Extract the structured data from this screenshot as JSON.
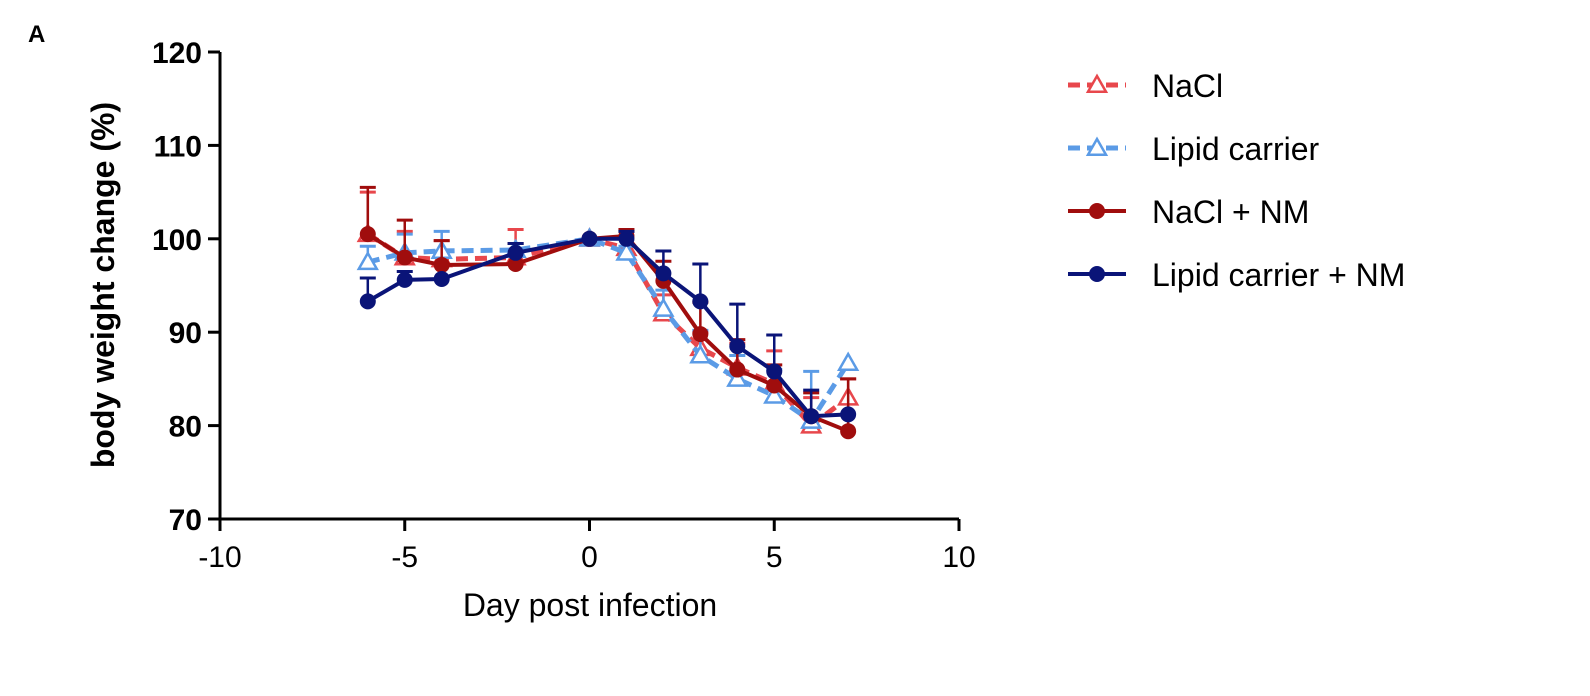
{
  "panel_label": "A",
  "chart_data": {
    "type": "line",
    "xlabel": "Day post infection",
    "ylabel": "body weight change (%)",
    "xlim": [
      -10,
      10
    ],
    "ylim": [
      70,
      120
    ],
    "xticks": [
      -10,
      -5,
      0,
      5,
      10
    ],
    "yticks": [
      70,
      80,
      90,
      100,
      110,
      120
    ],
    "grid": false,
    "legend_position": "right",
    "x": [
      -6,
      -5,
      -4,
      -2,
      0,
      1,
      2,
      3,
      4,
      5,
      6,
      7
    ],
    "series": [
      {
        "name": "NaCl",
        "color": "#e8474c",
        "style": "dashed",
        "marker": "open-triangle",
        "values": [
          100.5,
          98,
          97.8,
          98,
          100,
          99,
          92,
          88.3,
          86.2,
          84.5,
          80,
          83
        ],
        "error_upper": [
          105,
          100.8,
          99.8,
          101,
          100,
          100.8,
          94,
          90,
          88.8,
          88,
          83,
          85
        ]
      },
      {
        "name": "Lipid carrier",
        "color": "#5b9be6",
        "style": "dashed",
        "marker": "open-triangle",
        "values": [
          97.5,
          98.5,
          98.7,
          98.8,
          100,
          98.5,
          92.5,
          87.5,
          85,
          83.2,
          80.5,
          86.7
        ],
        "error_upper": [
          99.2,
          100.5,
          100.8,
          99.5,
          100,
          99.2,
          94.5,
          90.2,
          87.5,
          86,
          85.8,
          86.7
        ]
      },
      {
        "name": "NaCl + NM",
        "color": "#a00d0d",
        "style": "solid",
        "marker": "filled-circle",
        "values": [
          100.5,
          98,
          97.2,
          97.3,
          100,
          100.3,
          95.5,
          89.8,
          86,
          84.3,
          81,
          79.4
        ],
        "error_upper": [
          105.5,
          102,
          99.8,
          99.5,
          100,
          101,
          97.6,
          93.2,
          89.2,
          86.5,
          83.5,
          85
        ]
      },
      {
        "name": "Lipid carrier + NM",
        "color": "#0a1478",
        "style": "solid",
        "marker": "filled-circle",
        "values": [
          93.3,
          95.6,
          95.7,
          98.5,
          100,
          100,
          96.3,
          93.3,
          88.5,
          85.8,
          81,
          81.2
        ],
        "error_upper": [
          95.8,
          96.5,
          95.7,
          99.5,
          100,
          100.8,
          98.7,
          97.3,
          93,
          89.7,
          83.8,
          81.2
        ]
      }
    ]
  }
}
